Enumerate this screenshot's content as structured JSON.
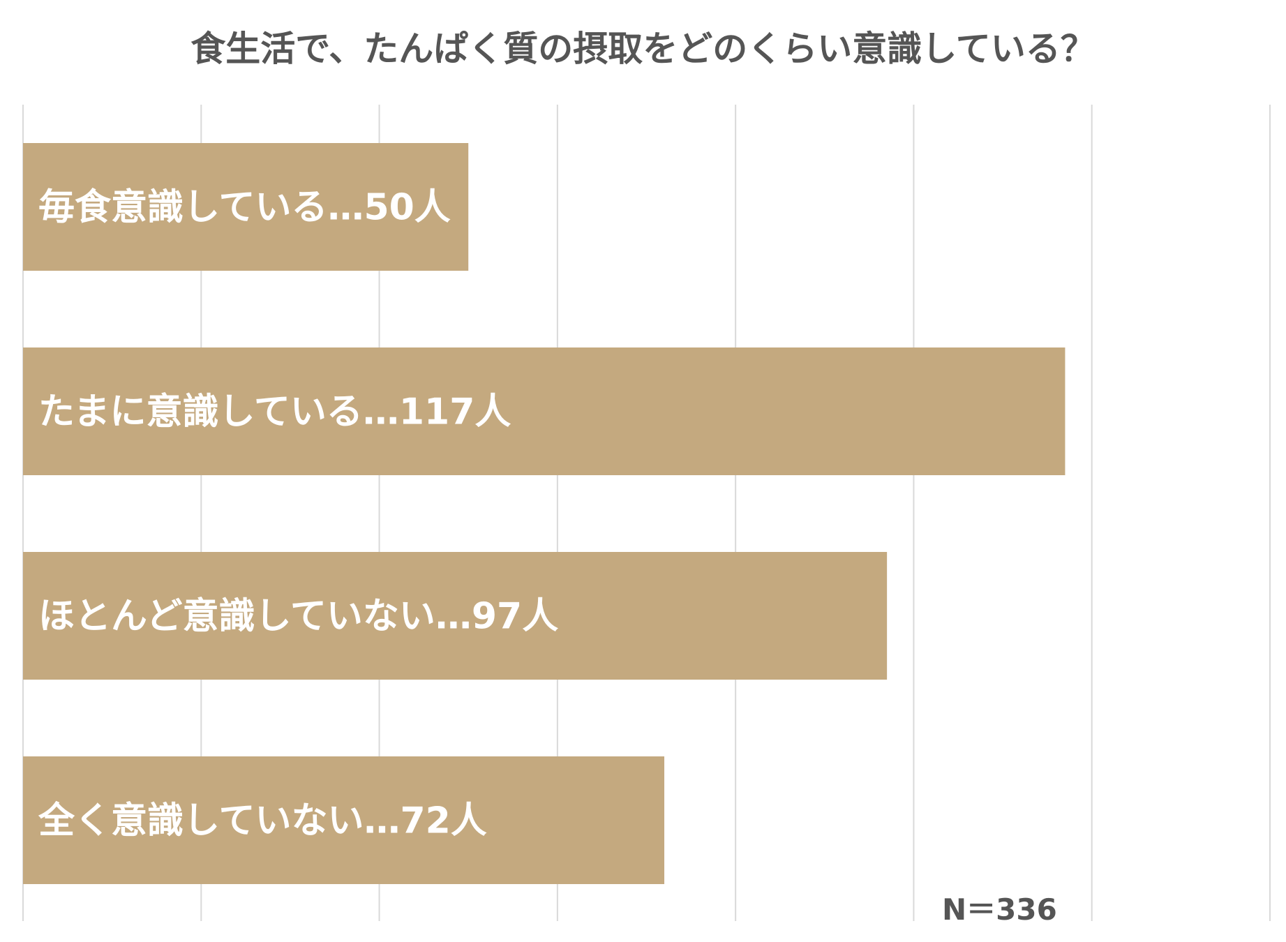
{
  "chart_data": {
    "type": "bar",
    "orientation": "horizontal",
    "title": "食生活で、たんぱく質の摂取をどのくらい意識している？",
    "categories": [
      "毎食意識している",
      "たまに意識している",
      "ほとんど意識していない",
      "全く意識していない"
    ],
    "values": [
      50,
      117,
      97,
      72
    ],
    "bar_labels": [
      "毎食意識している…50人",
      "たまに意識している…117人",
      "ほとんど意識していない…97人",
      "全く意識していない…72人"
    ],
    "xlim": [
      0,
      140
    ],
    "grid": true,
    "note": "N＝336",
    "colors": {
      "bar": "#c4a97f",
      "grid": "#d9d9d9"
    }
  }
}
